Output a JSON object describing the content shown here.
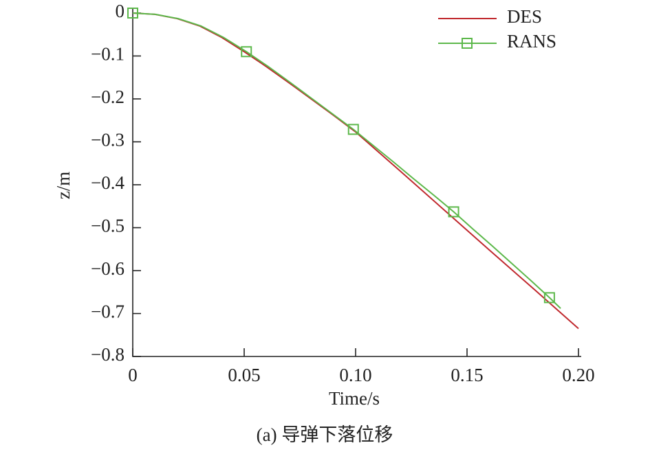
{
  "chart_data": {
    "type": "line",
    "caption": "(a) 导弹下落位移",
    "x_label": "Time/s",
    "y_label": "z/m",
    "xlim": [
      0,
      0.2
    ],
    "ylim": [
      -0.8,
      0
    ],
    "xticks": [
      0,
      0.05,
      {
        "value": 0.1,
        "label": "0.10"
      },
      0.15,
      {
        "value": 0.2,
        "label": "0.20"
      }
    ],
    "yticks": [
      0,
      {
        "value": -0.1,
        "label": "−0.1"
      },
      {
        "value": -0.2,
        "label": "−0.2"
      },
      {
        "value": -0.3,
        "label": "−0.3"
      },
      {
        "value": -0.4,
        "label": "−0.4"
      },
      {
        "value": -0.5,
        "label": "−0.5"
      },
      {
        "value": -0.6,
        "label": "−0.6"
      },
      {
        "value": -0.7,
        "label": "−0.7"
      },
      {
        "value": -0.8,
        "label": "−0.8"
      }
    ],
    "legend": "top-right",
    "series": [
      {
        "name": "DES",
        "color": "#c0282d",
        "marker": "none",
        "x": [
          0,
          0.01,
          0.02,
          0.03,
          0.04,
          0.05,
          0.06,
          0.07,
          0.08,
          0.09,
          0.1,
          0.12,
          0.14,
          0.16,
          0.18,
          0.2
        ],
        "values": [
          0,
          -0.003,
          -0.013,
          -0.03,
          -0.057,
          -0.09,
          -0.125,
          -0.162,
          -0.2,
          -0.238,
          -0.277,
          -0.368,
          -0.46,
          -0.552,
          -0.643,
          -0.735
        ]
      },
      {
        "name": "RANS",
        "color": "#5cb84a",
        "marker": "square",
        "markevery": 5,
        "x": [
          0,
          0.0102,
          0.0204,
          0.0306,
          0.0408,
          0.051,
          0.0606,
          0.0702,
          0.0798,
          0.0894,
          0.099,
          0.108,
          0.117,
          0.126,
          0.135,
          0.144,
          0.1526,
          0.1612,
          0.1698,
          0.1784,
          0.187,
          0.192
        ],
        "values": [
          0,
          -0.003,
          -0.013,
          -0.03,
          -0.057,
          -0.09,
          -0.124,
          -0.16,
          -0.197,
          -0.234,
          -0.271,
          -0.309,
          -0.347,
          -0.386,
          -0.424,
          -0.463,
          -0.503,
          -0.542,
          -0.582,
          -0.622,
          -0.663,
          -0.688
        ]
      }
    ]
  }
}
